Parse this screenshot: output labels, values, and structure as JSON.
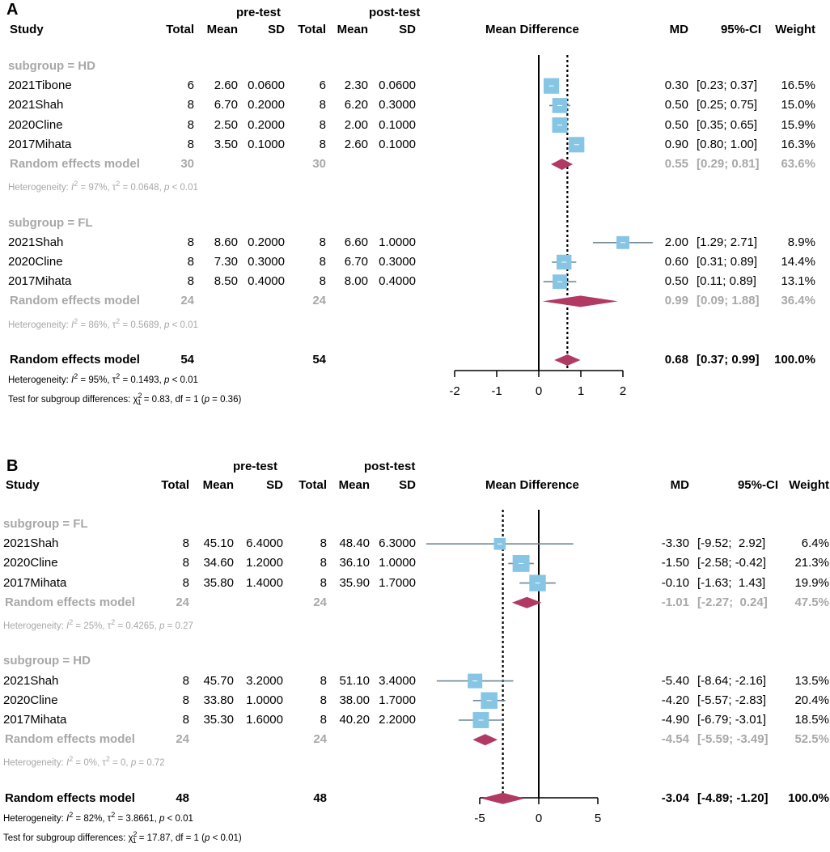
{
  "chart_data": [
    {
      "panel_label": "A",
      "type": "forest",
      "title": "Mean Difference",
      "headers": {
        "study": "Study",
        "pre_group": "pre-test",
        "post_group": "post-test",
        "total": "Total",
        "mean": "Mean",
        "sd": "SD",
        "md": "MD",
        "ci": "95%-CI",
        "weight": "Weight"
      },
      "xlim": [
        -2,
        2
      ],
      "ticks": [
        -2,
        -1,
        0,
        1,
        2
      ],
      "tick_labels": [
        "-2",
        "-1",
        "0",
        "1",
        "2"
      ],
      "overall_md": 0.68,
      "rows": [
        {
          "kind": "subgroup",
          "label": "subgroup = HD"
        },
        {
          "kind": "study",
          "study": "2021Tibone",
          "pre_total": "6",
          "pre_mean": "2.60",
          "pre_sd": "0.0600",
          "post_total": "6",
          "post_mean": "2.30",
          "post_sd": "0.0600",
          "md": 0.3,
          "lo": 0.23,
          "hi": 0.37,
          "md_text": "0.30",
          "ci_text": "[0.23; 0.37]",
          "weight": "16.5%",
          "w": 16.5
        },
        {
          "kind": "study",
          "study": "2021Shah",
          "pre_total": "8",
          "pre_mean": "6.70",
          "pre_sd": "0.2000",
          "post_total": "8",
          "post_mean": "6.20",
          "post_sd": "0.3000",
          "md": 0.5,
          "lo": 0.25,
          "hi": 0.75,
          "md_text": "0.50",
          "ci_text": "[0.25; 0.75]",
          "weight": "15.0%",
          "w": 15.0
        },
        {
          "kind": "study",
          "study": "2020Cline",
          "pre_total": "8",
          "pre_mean": "2.50",
          "pre_sd": "0.2000",
          "post_total": "8",
          "post_mean": "2.00",
          "post_sd": "0.1000",
          "md": 0.5,
          "lo": 0.35,
          "hi": 0.65,
          "md_text": "0.50",
          "ci_text": "[0.35; 0.65]",
          "weight": "15.9%",
          "w": 15.9
        },
        {
          "kind": "study",
          "study": "2017Mihata",
          "pre_total": "8",
          "pre_mean": "3.50",
          "pre_sd": "0.1000",
          "post_total": "8",
          "post_mean": "2.60",
          "post_sd": "0.1000",
          "md": 0.9,
          "lo": 0.8,
          "hi": 1.0,
          "md_text": "0.90",
          "ci_text": "[0.80; 1.00]",
          "weight": "16.3%",
          "w": 16.3
        },
        {
          "kind": "sub_model",
          "label": "Random effects model",
          "pre_total": "30",
          "post_total": "30",
          "md": 0.55,
          "lo": 0.29,
          "hi": 0.81,
          "md_text": "0.55",
          "ci_text": "[0.29; 0.81]",
          "weight": "63.6%"
        },
        {
          "kind": "het",
          "parts": [
            "Heterogeneity: ",
            "I",
            "2",
            " = 97%, ",
            "τ",
            "2",
            " = 0.0648, ",
            "p",
            " < 0.01"
          ]
        },
        {
          "kind": "blank"
        },
        {
          "kind": "subgroup",
          "label": "subgroup = FL"
        },
        {
          "kind": "study",
          "study": "2021Shah",
          "pre_total": "8",
          "pre_mean": "8.60",
          "pre_sd": "0.2000",
          "post_total": "8",
          "post_mean": "6.60",
          "post_sd": "1.0000",
          "md": 2.0,
          "lo": 1.29,
          "hi": 2.71,
          "md_text": "2.00",
          "ci_text": "[1.29; 2.71]",
          "weight": "8.9%",
          "w": 8.9
        },
        {
          "kind": "study",
          "study": "2020Cline",
          "pre_total": "8",
          "pre_mean": "7.30",
          "pre_sd": "0.3000",
          "post_total": "8",
          "post_mean": "6.70",
          "post_sd": "0.3000",
          "md": 0.6,
          "lo": 0.31,
          "hi": 0.89,
          "md_text": "0.60",
          "ci_text": "[0.31; 0.89]",
          "weight": "14.4%",
          "w": 14.4
        },
        {
          "kind": "study",
          "study": "2017Mihata",
          "pre_total": "8",
          "pre_mean": "8.50",
          "pre_sd": "0.4000",
          "post_total": "8",
          "post_mean": "8.00",
          "post_sd": "0.4000",
          "md": 0.5,
          "lo": 0.11,
          "hi": 0.89,
          "md_text": "0.50",
          "ci_text": "[0.11; 0.89]",
          "weight": "13.1%",
          "w": 13.1
        },
        {
          "kind": "sub_model",
          "label": "Random effects model",
          "pre_total": "24",
          "post_total": "24",
          "md": 0.99,
          "lo": 0.09,
          "hi": 1.88,
          "md_text": "0.99",
          "ci_text": "[0.09; 1.88]",
          "weight": "36.4%"
        },
        {
          "kind": "het",
          "parts": [
            "Heterogeneity: ",
            "I",
            "2",
            " = 86%, ",
            "τ",
            "2",
            " = 0.5689, ",
            "p",
            " < 0.01"
          ]
        },
        {
          "kind": "blank"
        },
        {
          "kind": "overall",
          "label": "Random effects model",
          "pre_total": "54",
          "post_total": "54",
          "md": 0.68,
          "lo": 0.37,
          "hi": 0.99,
          "md_text": "0.68",
          "ci_text": "[0.37; 0.99]",
          "weight": "100.0%"
        },
        {
          "kind": "het_black",
          "parts": [
            "Heterogeneity: ",
            "I",
            "2",
            " = 95%, ",
            "τ",
            "2",
            " = 0.1493, ",
            "p",
            " < 0.01"
          ]
        },
        {
          "kind": "test",
          "parts": [
            "Test for subgroup differences: ",
            "χ",
            "2",
            "1",
            " = 0.83, df = 1 (",
            "p",
            " = 0.36)"
          ]
        }
      ]
    },
    {
      "panel_label": "B",
      "type": "forest",
      "title": "Mean Difference",
      "headers": {
        "study": "Study",
        "pre_group": "pre-test",
        "post_group": "post-test",
        "total": "Total",
        "mean": "Mean",
        "sd": "SD",
        "md": "MD",
        "ci": "95%-CI",
        "weight": "Weight"
      },
      "xlim": [
        -10,
        5
      ],
      "ticks": [
        -5,
        0,
        5
      ],
      "tick_labels": [
        "-5",
        "0",
        "5"
      ],
      "overall_md": -3.04,
      "rows": [
        {
          "kind": "subgroup",
          "label": "subgroup = FL"
        },
        {
          "kind": "study",
          "study": "2021Shah",
          "pre_total": "8",
          "pre_mean": "45.10",
          "pre_sd": "6.4000",
          "post_total": "8",
          "post_mean": "48.40",
          "post_sd": "6.3000",
          "md": -3.3,
          "lo": -9.52,
          "hi": 2.92,
          "md_text": "-3.30",
          "ci_text": "[-9.52;  2.92]",
          "weight": "6.4%",
          "w": 6.4
        },
        {
          "kind": "study",
          "study": "2020Cline",
          "pre_total": "8",
          "pre_mean": "34.60",
          "pre_sd": "1.2000",
          "post_total": "8",
          "post_mean": "36.10",
          "post_sd": "1.0000",
          "md": -1.5,
          "lo": -2.58,
          "hi": -0.42,
          "md_text": "-1.50",
          "ci_text": "[-2.58; -0.42]",
          "weight": "21.3%",
          "w": 21.3
        },
        {
          "kind": "study",
          "study": "2017Mihata",
          "pre_total": "8",
          "pre_mean": "35.80",
          "pre_sd": "1.4000",
          "post_total": "8",
          "post_mean": "35.90",
          "post_sd": "1.7000",
          "md": -0.1,
          "lo": -1.63,
          "hi": 1.43,
          "md_text": "-0.10",
          "ci_text": "[-1.63;  1.43]",
          "weight": "19.9%",
          "w": 19.9
        },
        {
          "kind": "sub_model",
          "label": "Random effects model",
          "pre_total": "24",
          "post_total": "24",
          "md": -1.01,
          "lo": -2.27,
          "hi": 0.24,
          "md_text": "-1.01",
          "ci_text": "[-2.27;  0.24]",
          "weight": "47.5%"
        },
        {
          "kind": "het",
          "parts": [
            "Heterogeneity: ",
            "I",
            "2",
            " = 25%, ",
            "τ",
            "2",
            " = 0.4265, ",
            "p",
            " = 0.27"
          ]
        },
        {
          "kind": "blank"
        },
        {
          "kind": "subgroup",
          "label": "subgroup = HD"
        },
        {
          "kind": "study",
          "study": "2021Shah",
          "pre_total": "8",
          "pre_mean": "45.70",
          "pre_sd": "3.2000",
          "post_total": "8",
          "post_mean": "51.10",
          "post_sd": "3.4000",
          "md": -5.4,
          "lo": -8.64,
          "hi": -2.16,
          "md_text": "-5.40",
          "ci_text": "[-8.64; -2.16]",
          "weight": "13.5%",
          "w": 13.5
        },
        {
          "kind": "study",
          "study": "2020Cline",
          "pre_total": "8",
          "pre_mean": "33.80",
          "pre_sd": "1.0000",
          "post_total": "8",
          "post_mean": "38.00",
          "post_sd": "1.7000",
          "md": -4.2,
          "lo": -5.57,
          "hi": -2.83,
          "md_text": "-4.20",
          "ci_text": "[-5.57; -2.83]",
          "weight": "20.4%",
          "w": 20.4
        },
        {
          "kind": "study",
          "study": "2017Mihata",
          "pre_total": "8",
          "pre_mean": "35.30",
          "pre_sd": "1.6000",
          "post_total": "8",
          "post_mean": "40.20",
          "post_sd": "2.2000",
          "md": -4.9,
          "lo": -6.79,
          "hi": -3.01,
          "md_text": "-4.90",
          "ci_text": "[-6.79; -3.01]",
          "weight": "18.5%",
          "w": 18.5
        },
        {
          "kind": "sub_model",
          "label": "Random effects model",
          "pre_total": "24",
          "post_total": "24",
          "md": -4.54,
          "lo": -5.59,
          "hi": -3.49,
          "md_text": "-4.54",
          "ci_text": "[-5.59; -3.49]",
          "weight": "52.5%"
        },
        {
          "kind": "het",
          "parts": [
            "Heterogeneity: ",
            "I",
            "2",
            " = 0%, ",
            "τ",
            "2",
            " = 0, ",
            "p",
            " = 0.72"
          ]
        },
        {
          "kind": "blank"
        },
        {
          "kind": "overall",
          "label": "Random effects model",
          "pre_total": "48",
          "post_total": "48",
          "md": -3.04,
          "lo": -4.89,
          "hi": -1.2,
          "md_text": "-3.04",
          "ci_text": "[-4.89; -1.20]",
          "weight": "100.0%"
        },
        {
          "kind": "het_black",
          "parts": [
            "Heterogeneity: ",
            "I",
            "2",
            " = 82%, ",
            "τ",
            "2",
            " = 3.8661, ",
            "p",
            " < 0.01"
          ]
        },
        {
          "kind": "test",
          "parts": [
            "Test for subgroup differences: ",
            "χ",
            "2",
            "1",
            " = 17.87, df = 1 (",
            "p",
            " < 0.01)"
          ]
        }
      ]
    }
  ],
  "colors": {
    "square": "#86c5e4",
    "ci_line": "#6f8799",
    "diamond": "#b03a62",
    "muted": "#a8a8a8"
  }
}
